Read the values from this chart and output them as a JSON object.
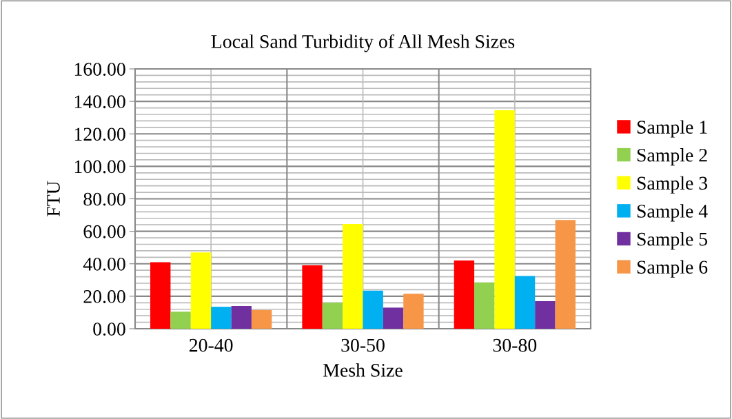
{
  "chart_data": {
    "type": "bar",
    "title": "Local Sand Turbidity of All Mesh Sizes",
    "xlabel": "Mesh Size",
    "ylabel": "FTU",
    "categories": [
      "20-40",
      "30-50",
      "30-80"
    ],
    "series": [
      {
        "name": "Sample 1",
        "color": "#ff0000",
        "values": [
          41,
          39,
          42
        ]
      },
      {
        "name": "Sample 2",
        "color": "#92d050",
        "values": [
          10.5,
          16,
          28.5
        ]
      },
      {
        "name": "Sample 3",
        "color": "#ffff00",
        "values": [
          47,
          64.5,
          134.5
        ]
      },
      {
        "name": "Sample 4",
        "color": "#00b0f0",
        "values": [
          13.5,
          23.5,
          32.5
        ]
      },
      {
        "name": "Sample 5",
        "color": "#7030a0",
        "values": [
          14,
          13,
          17
        ]
      },
      {
        "name": "Sample 6",
        "color": "#f79646",
        "values": [
          11.5,
          21.5,
          67
        ]
      }
    ],
    "ylim": [
      0,
      160
    ],
    "yticks": [
      {
        "value": 0,
        "label": "0.00"
      },
      {
        "value": 20,
        "label": "20.00"
      },
      {
        "value": 40,
        "label": "40.00"
      },
      {
        "value": 60,
        "label": "60.00"
      },
      {
        "value": 80,
        "label": "80.00"
      },
      {
        "value": 100,
        "label": "100.00"
      },
      {
        "value": 120,
        "label": "120.00"
      },
      {
        "value": 140,
        "label": "140.00"
      },
      {
        "value": 160,
        "label": "160.00"
      }
    ],
    "grid": true,
    "legend": "right"
  }
}
